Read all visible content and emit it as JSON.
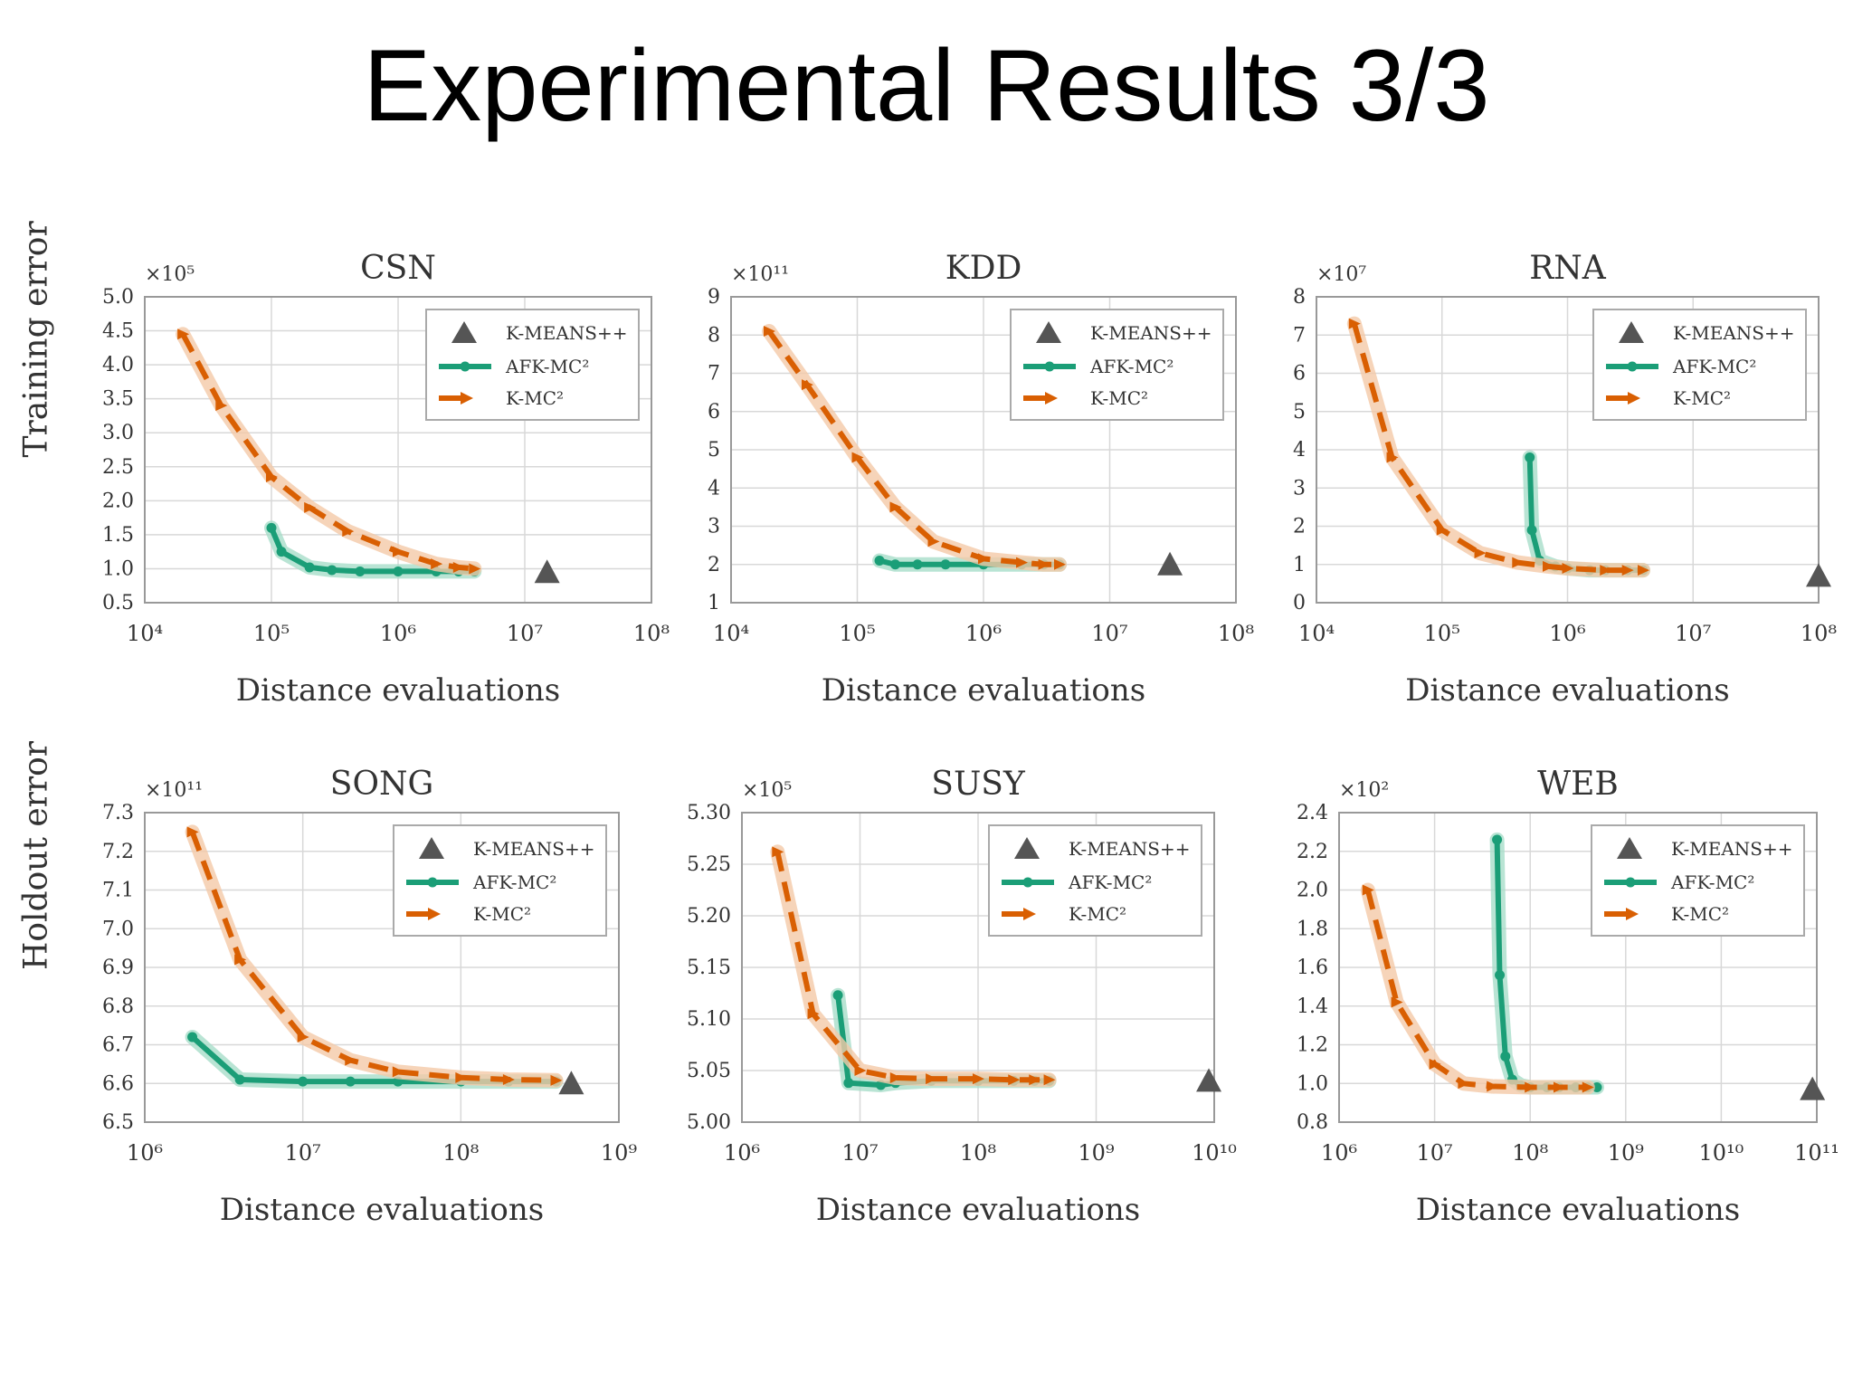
{
  "slide": {
    "title": "Experimental Results 3/3"
  },
  "row_labels": {
    "top": "Training error",
    "bottom": "Holdout error"
  },
  "colors": {
    "afk": "#1b9e77",
    "kmc": "#d95f02",
    "band_kmc": "#f4c9a8",
    "band_afk": "#a8ddc9",
    "kmeans": "#555555",
    "grid": "#d8d8d8"
  },
  "legend_labels": [
    "K-MEANS++",
    "AFK-MC²",
    "K-MC²"
  ],
  "chart_data": [
    {
      "type": "line",
      "title": "CSN",
      "xlabel": "Distance evaluations",
      "ylabel": "Training error",
      "x_scale": "log",
      "xlim_exp": [
        4,
        8
      ],
      "x_ticks": [
        "10⁴",
        "10⁵",
        "10⁶",
        "10⁷",
        "10⁸"
      ],
      "multiplier": "×10⁵",
      "ylim": [
        0.5,
        5.0
      ],
      "y_ticks": [
        "0.5",
        "1.0",
        "1.5",
        "2.0",
        "2.5",
        "3.0",
        "3.5",
        "4.0",
        "4.5",
        "5.0"
      ],
      "y_tick_values": [
        0.5,
        1.0,
        1.5,
        2.0,
        2.5,
        3.0,
        3.5,
        4.0,
        4.5,
        5.0
      ],
      "kmeans": {
        "x": 15000000,
        "y": 0.95
      },
      "series": [
        {
          "name": "AFK-MC²",
          "x": [
            100000,
            120000,
            200000,
            300000,
            500000,
            1000000,
            2000000,
            3000000,
            4000000
          ],
          "y": [
            1.6,
            1.25,
            1.02,
            0.98,
            0.96,
            0.96,
            0.96,
            0.96,
            0.96
          ]
        },
        {
          "name": "K-MC²",
          "x": [
            20000,
            40000,
            100000,
            200000,
            400000,
            1000000,
            2000000,
            3000000,
            4000000
          ],
          "y": [
            4.45,
            3.4,
            2.35,
            1.9,
            1.55,
            1.25,
            1.07,
            1.02,
            1.0
          ]
        }
      ]
    },
    {
      "type": "line",
      "title": "KDD",
      "xlabel": "Distance evaluations",
      "ylabel": "",
      "x_scale": "log",
      "xlim_exp": [
        4,
        8
      ],
      "x_ticks": [
        "10⁴",
        "10⁵",
        "10⁶",
        "10⁷",
        "10⁸"
      ],
      "multiplier": "×10¹¹",
      "ylim": [
        1,
        9
      ],
      "y_ticks": [
        "1",
        "2",
        "3",
        "4",
        "5",
        "6",
        "7",
        "8",
        "9"
      ],
      "y_tick_values": [
        1,
        2,
        3,
        4,
        5,
        6,
        7,
        8,
        9
      ],
      "kmeans": {
        "x": 30000000,
        "y": 2.0
      },
      "series": [
        {
          "name": "AFK-MC²",
          "x": [
            150000,
            200000,
            300000,
            500000,
            1000000,
            2000000,
            3000000,
            4000000
          ],
          "y": [
            2.1,
            2.0,
            2.0,
            2.0,
            2.0,
            2.0,
            2.0,
            2.0
          ]
        },
        {
          "name": "K-MC²",
          "x": [
            20000,
            40000,
            100000,
            200000,
            400000,
            1000000,
            2000000,
            3000000,
            4000000
          ],
          "y": [
            8.1,
            6.7,
            4.8,
            3.5,
            2.6,
            2.15,
            2.05,
            2.0,
            2.0
          ]
        }
      ]
    },
    {
      "type": "line",
      "title": "RNA",
      "xlabel": "Distance evaluations",
      "ylabel": "",
      "x_scale": "log",
      "xlim_exp": [
        4,
        8
      ],
      "x_ticks": [
        "10⁴",
        "10⁵",
        "10⁶",
        "10⁷",
        "10⁸"
      ],
      "multiplier": "×10⁷",
      "ylim": [
        0,
        8
      ],
      "y_ticks": [
        "0",
        "1",
        "2",
        "3",
        "4",
        "5",
        "6",
        "7",
        "8"
      ],
      "y_tick_values": [
        0,
        1,
        2,
        3,
        4,
        5,
        6,
        7,
        8
      ],
      "kmeans": {
        "x": 100000000,
        "y": 0.7
      },
      "series": [
        {
          "name": "AFK-MC²",
          "x": [
            500000,
            520000,
            600000,
            800000,
            1000000,
            1500000,
            2000000,
            3000000,
            4000000
          ],
          "y": [
            3.8,
            1.9,
            1.1,
            0.95,
            0.9,
            0.85,
            0.85,
            0.85,
            0.85
          ]
        },
        {
          "name": "K-MC²",
          "x": [
            20000,
            40000,
            100000,
            200000,
            400000,
            700000,
            1000000,
            2000000,
            3000000,
            4000000
          ],
          "y": [
            7.3,
            3.8,
            1.9,
            1.3,
            1.05,
            0.95,
            0.9,
            0.85,
            0.85,
            0.85
          ]
        }
      ]
    },
    {
      "type": "line",
      "title": "SONG",
      "xlabel": "Distance evaluations",
      "ylabel": "Holdout error",
      "x_scale": "log",
      "xlim_exp": [
        6,
        9
      ],
      "x_ticks": [
        "10⁶",
        "10⁷",
        "10⁸",
        "10⁹"
      ],
      "multiplier": "×10¹¹",
      "ylim": [
        6.5,
        7.3
      ],
      "y_ticks": [
        "6.5",
        "6.6",
        "6.7",
        "6.8",
        "6.9",
        "7.0",
        "7.1",
        "7.2",
        "7.3"
      ],
      "y_tick_values": [
        6.5,
        6.6,
        6.7,
        6.8,
        6.9,
        7.0,
        7.1,
        7.2,
        7.3
      ],
      "kmeans": {
        "x": 500000000,
        "y": 6.6
      },
      "series": [
        {
          "name": "AFK-MC²",
          "x": [
            2000000,
            4000000,
            10000000,
            20000000,
            40000000,
            100000000,
            200000000,
            400000000
          ],
          "y": [
            6.72,
            6.61,
            6.605,
            6.605,
            6.605,
            6.605,
            6.605,
            6.605
          ]
        },
        {
          "name": "K-MC²",
          "x": [
            2000000,
            4000000,
            10000000,
            20000000,
            40000000,
            100000000,
            200000000,
            400000000
          ],
          "y": [
            7.25,
            6.92,
            6.72,
            6.66,
            6.63,
            6.615,
            6.61,
            6.608
          ]
        }
      ]
    },
    {
      "type": "line",
      "title": "SUSY",
      "xlabel": "Distance evaluations",
      "ylabel": "",
      "x_scale": "log",
      "xlim_exp": [
        6,
        10
      ],
      "x_ticks": [
        "10⁶",
        "10⁷",
        "10⁸",
        "10⁹",
        "10¹⁰"
      ],
      "multiplier": "×10⁵",
      "ylim": [
        5.0,
        5.3
      ],
      "y_ticks": [
        "5.00",
        "5.05",
        "5.10",
        "5.15",
        "5.20",
        "5.25",
        "5.30"
      ],
      "y_tick_values": [
        5.0,
        5.05,
        5.1,
        5.15,
        5.2,
        5.25,
        5.3
      ],
      "kmeans": {
        "x": 9000000000,
        "y": 5.04
      },
      "series": [
        {
          "name": "AFK-MC²",
          "x": [
            6500000,
            8000000,
            15000000,
            20000000,
            40000000,
            100000000,
            200000000,
            300000000,
            400000000
          ],
          "y": [
            5.123,
            5.038,
            5.036,
            5.038,
            5.04,
            5.04,
            5.04,
            5.04,
            5.04
          ]
        },
        {
          "name": "K-MC²",
          "x": [
            2000000,
            4000000,
            10000000,
            20000000,
            40000000,
            100000000,
            200000000,
            300000000,
            400000000
          ],
          "y": [
            5.262,
            5.105,
            5.05,
            5.043,
            5.042,
            5.042,
            5.041,
            5.041,
            5.041
          ]
        }
      ]
    },
    {
      "type": "line",
      "title": "WEB",
      "xlabel": "Distance evaluations",
      "ylabel": "",
      "x_scale": "log",
      "xlim_exp": [
        6,
        11
      ],
      "x_ticks": [
        "10⁶",
        "10⁷",
        "10⁸",
        "10⁹",
        "10¹⁰",
        "10¹¹"
      ],
      "multiplier": "×10²",
      "ylim": [
        0.8,
        2.4
      ],
      "y_ticks": [
        "0.8",
        "1.0",
        "1.2",
        "1.4",
        "1.6",
        "1.8",
        "2.0",
        "2.2",
        "2.4"
      ],
      "y_tick_values": [
        0.8,
        1.0,
        1.2,
        1.4,
        1.6,
        1.8,
        2.0,
        2.2,
        2.4
      ],
      "kmeans": {
        "x": 90000000000,
        "y": 0.97
      },
      "series": [
        {
          "name": "AFK-MC²",
          "x": [
            45000000,
            48000000,
            55000000,
            65000000,
            80000000,
            100000000,
            150000000,
            200000000,
            300000000,
            400000000,
            500000000
          ],
          "y": [
            2.26,
            1.56,
            1.14,
            1.02,
            0.99,
            0.98,
            0.98,
            0.98,
            0.98,
            0.98,
            0.98
          ]
        },
        {
          "name": "K-MC²",
          "x": [
            2000000,
            4000000,
            10000000,
            20000000,
            40000000,
            100000000,
            200000000,
            400000000
          ],
          "y": [
            2.0,
            1.42,
            1.1,
            1.0,
            0.985,
            0.98,
            0.98,
            0.98
          ]
        }
      ]
    }
  ]
}
